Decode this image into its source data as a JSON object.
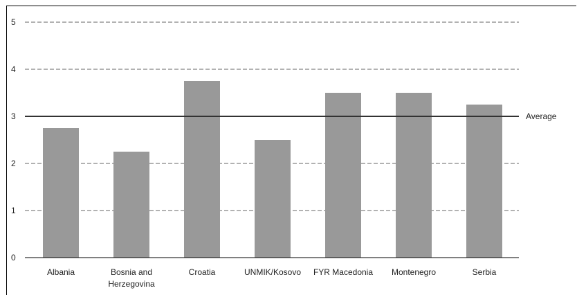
{
  "chart_data": {
    "type": "bar",
    "categories": [
      [
        "Albania"
      ],
      [
        "Bosnia and",
        "Herzegovina"
      ],
      [
        "Croatia"
      ],
      [
        "UNMIK/Kosovo"
      ],
      [
        "FYR Macedonia"
      ],
      [
        "Montenegro"
      ],
      [
        "Serbia"
      ]
    ],
    "values": [
      2.75,
      2.25,
      3.75,
      2.5,
      3.5,
      3.5,
      3.25
    ],
    "ylim": [
      0,
      5
    ],
    "yticks": [
      0,
      1,
      2,
      3,
      4,
      5
    ],
    "grid": true,
    "reference_line": {
      "value": 3,
      "label": "Average"
    },
    "colors": {
      "bar": "#999999",
      "grid": "#666666",
      "reference": "#333333",
      "axis": "#000000"
    }
  }
}
